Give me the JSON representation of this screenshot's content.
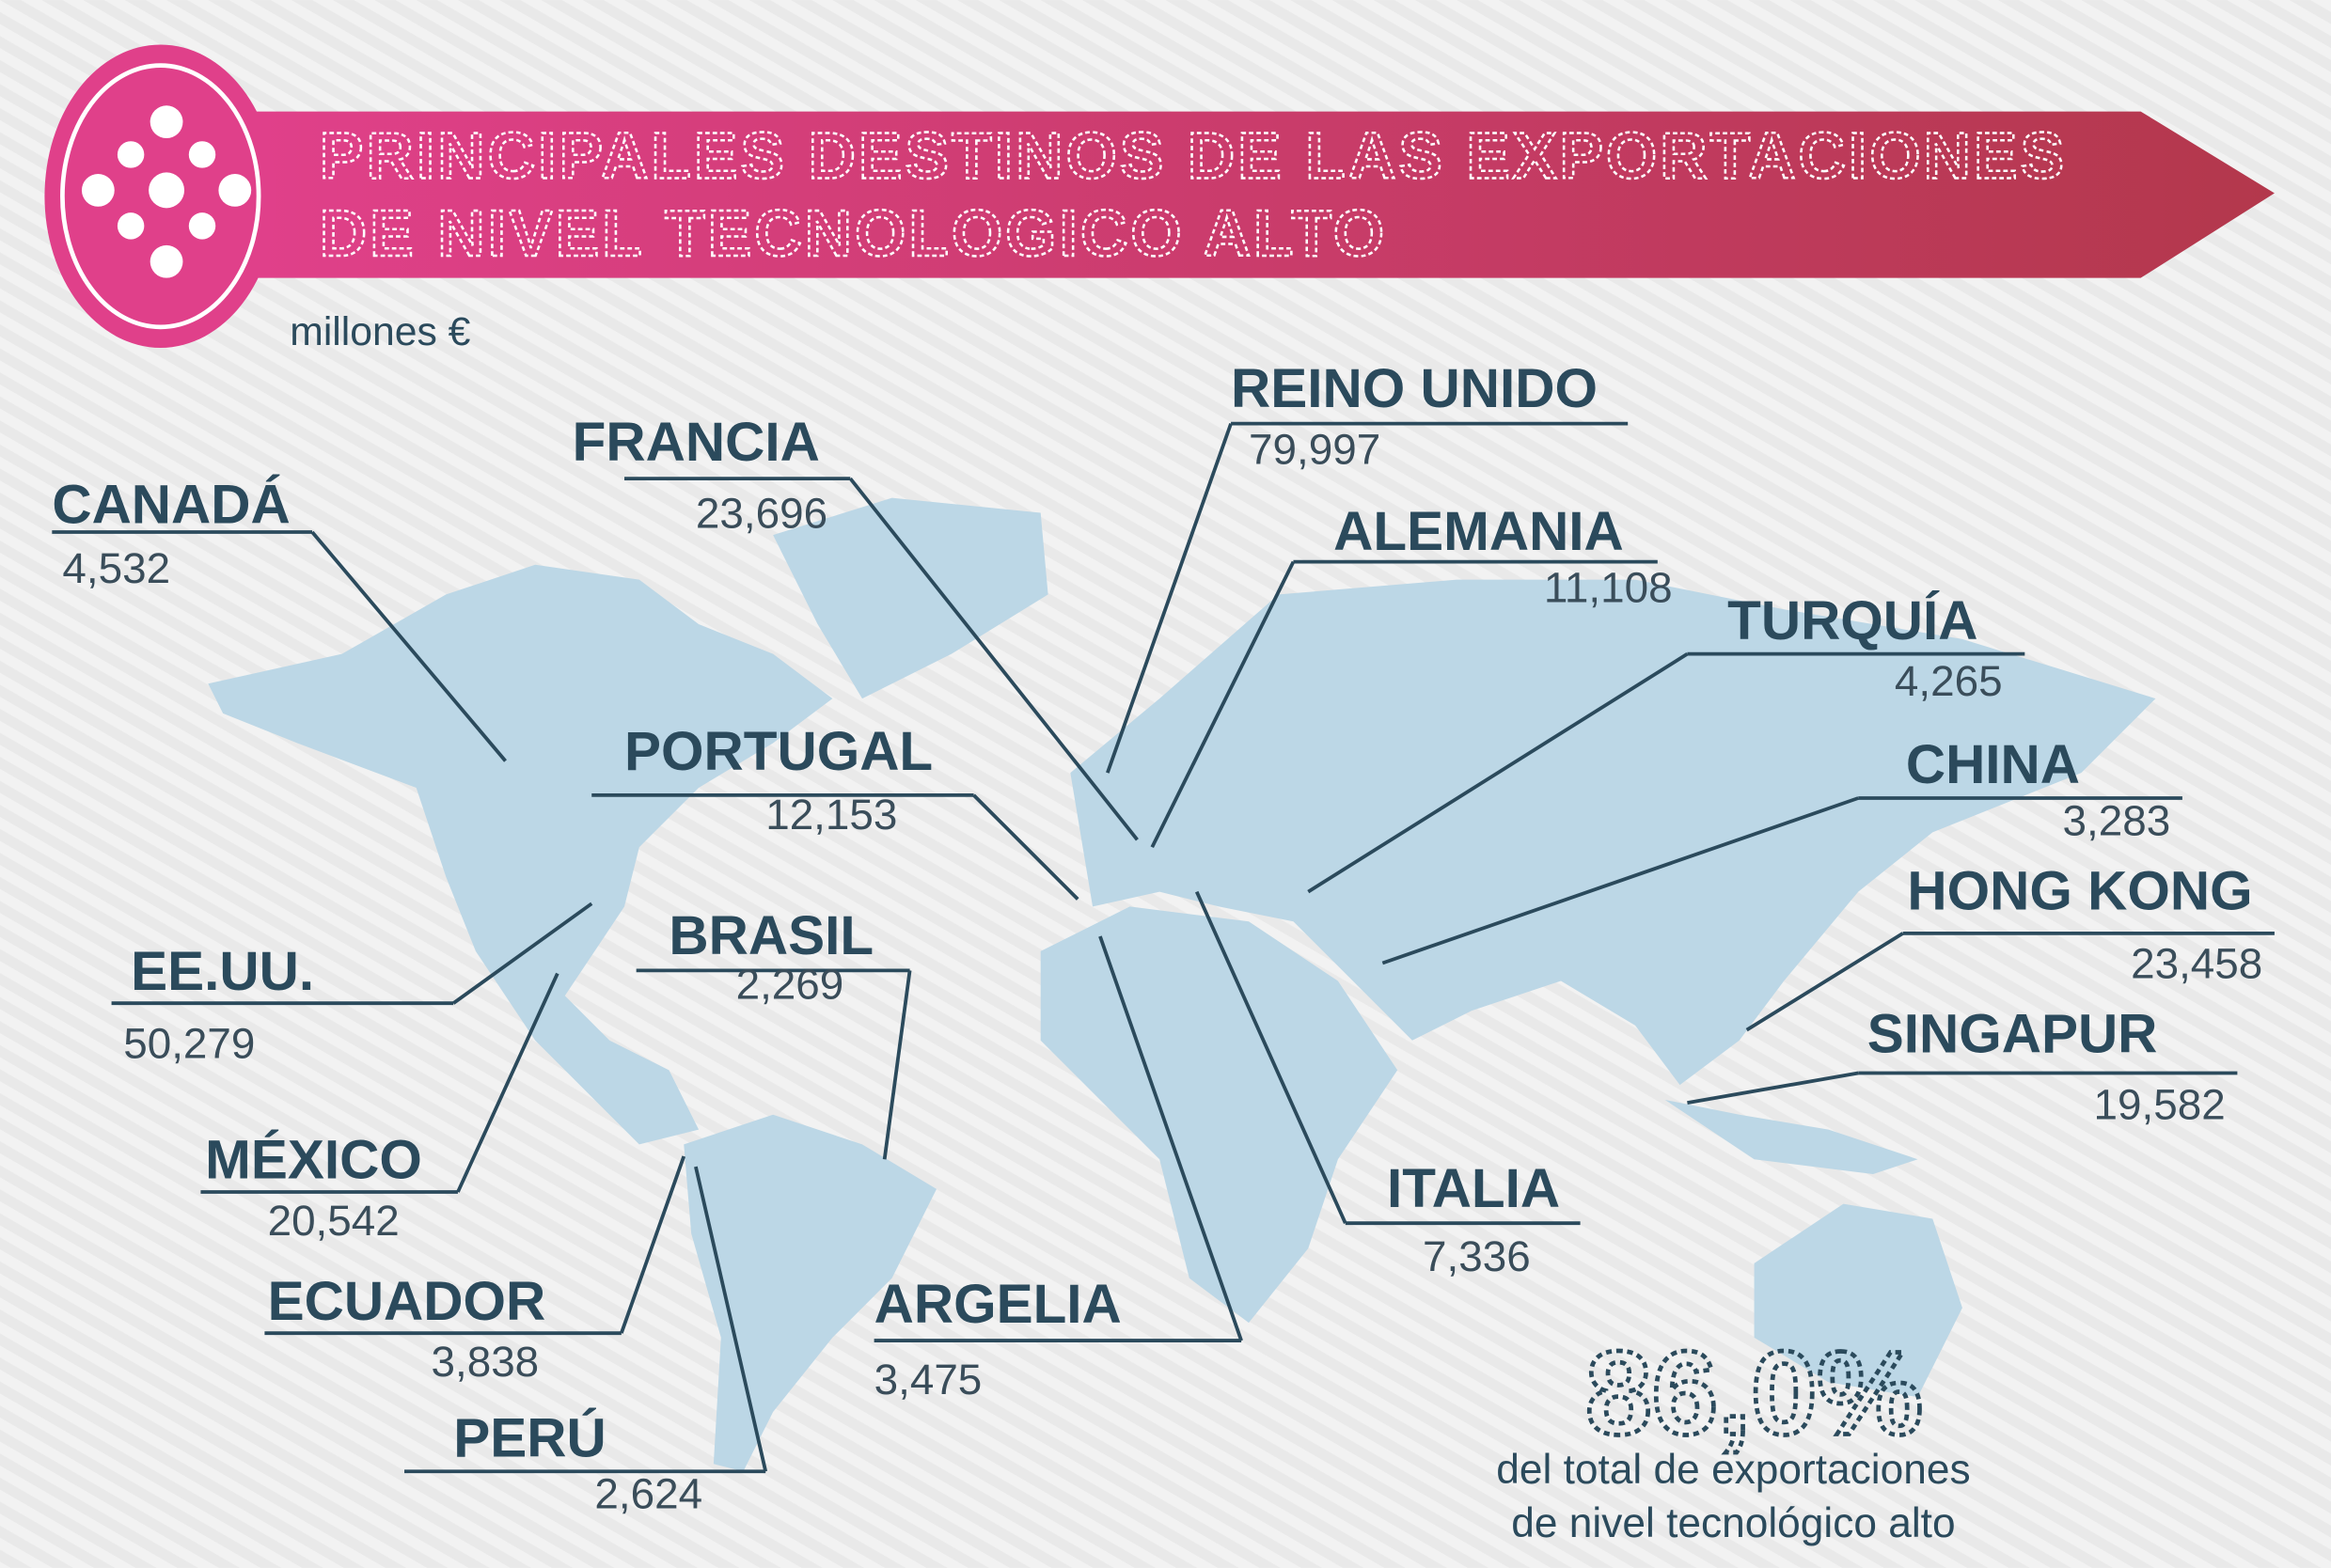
{
  "header": {
    "title_lines": [
      "PRINCIPALES DESTINOS DE LAS EXPORTACIONES",
      "DE NIVEL TECNOLOGICO ALTO"
    ],
    "unit": "millones €"
  },
  "destinations": [
    {
      "name": "CANADÁ",
      "value": "4,532"
    },
    {
      "name": "FRANCIA",
      "value": "23,696"
    },
    {
      "name": "REINO UNIDO",
      "value": "79,997"
    },
    {
      "name": "ALEMANIA",
      "value": "11,108"
    },
    {
      "name": "TURQUÍA",
      "value": "4,265"
    },
    {
      "name": "CHINA",
      "value": "3,283"
    },
    {
      "name": "HONG KONG",
      "value": "23,458"
    },
    {
      "name": "SINGAPUR",
      "value": "19,582"
    },
    {
      "name": "PORTUGAL",
      "value": "12,153"
    },
    {
      "name": "BRASIL",
      "value": "2,269"
    },
    {
      "name": "EE.UU.",
      "value": "50,279"
    },
    {
      "name": "MÉXICO",
      "value": "20,542"
    },
    {
      "name": "ECUADOR",
      "value": "3,838"
    },
    {
      "name": "PERÚ",
      "value": "2,624"
    },
    {
      "name": "ARGELIA",
      "value": "3,475"
    },
    {
      "name": "ITALIA",
      "value": "7,336"
    }
  ],
  "total": {
    "value": "86,0%",
    "caption_lines": [
      "del total de exportaciones",
      "de nivel tecnológico alto"
    ]
  }
}
